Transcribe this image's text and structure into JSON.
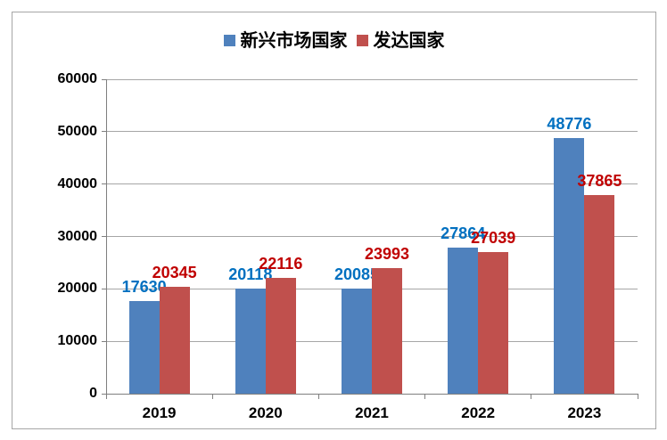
{
  "frame": {
    "background": "#ffffff",
    "border_color": "#a6a6a6"
  },
  "legend": {
    "position": "top-center",
    "items": [
      {
        "label": "新兴市场国家",
        "color": "#4F81BD"
      },
      {
        "label": "发达国家",
        "color": "#C0504D"
      }
    ]
  },
  "chart_data": {
    "type": "bar",
    "title": "",
    "xlabel": "",
    "ylabel": "",
    "categories": [
      "2019",
      "2020",
      "2021",
      "2022",
      "2023"
    ],
    "series": [
      {
        "name": "新兴市场国家",
        "bar_color": "#4F81BD",
        "label_color": "#0070C0",
        "values": [
          17630,
          20118,
          20085,
          27864,
          48776
        ]
      },
      {
        "name": "发达国家",
        "bar_color": "#C0504D",
        "label_color": "#C00000",
        "values": [
          20345,
          22116,
          23993,
          27039,
          37865
        ]
      }
    ],
    "ylim": [
      0,
      60000
    ],
    "ytick_step": 10000,
    "ytick_labels": [
      "0",
      "10000",
      "20000",
      "30000",
      "40000",
      "50000",
      "60000"
    ],
    "grid": "horizontal",
    "grid_color": "#a6a6a6",
    "axis_color": "#7f7f7f",
    "data_labels": "outside-end",
    "legend_position": "top-center"
  }
}
